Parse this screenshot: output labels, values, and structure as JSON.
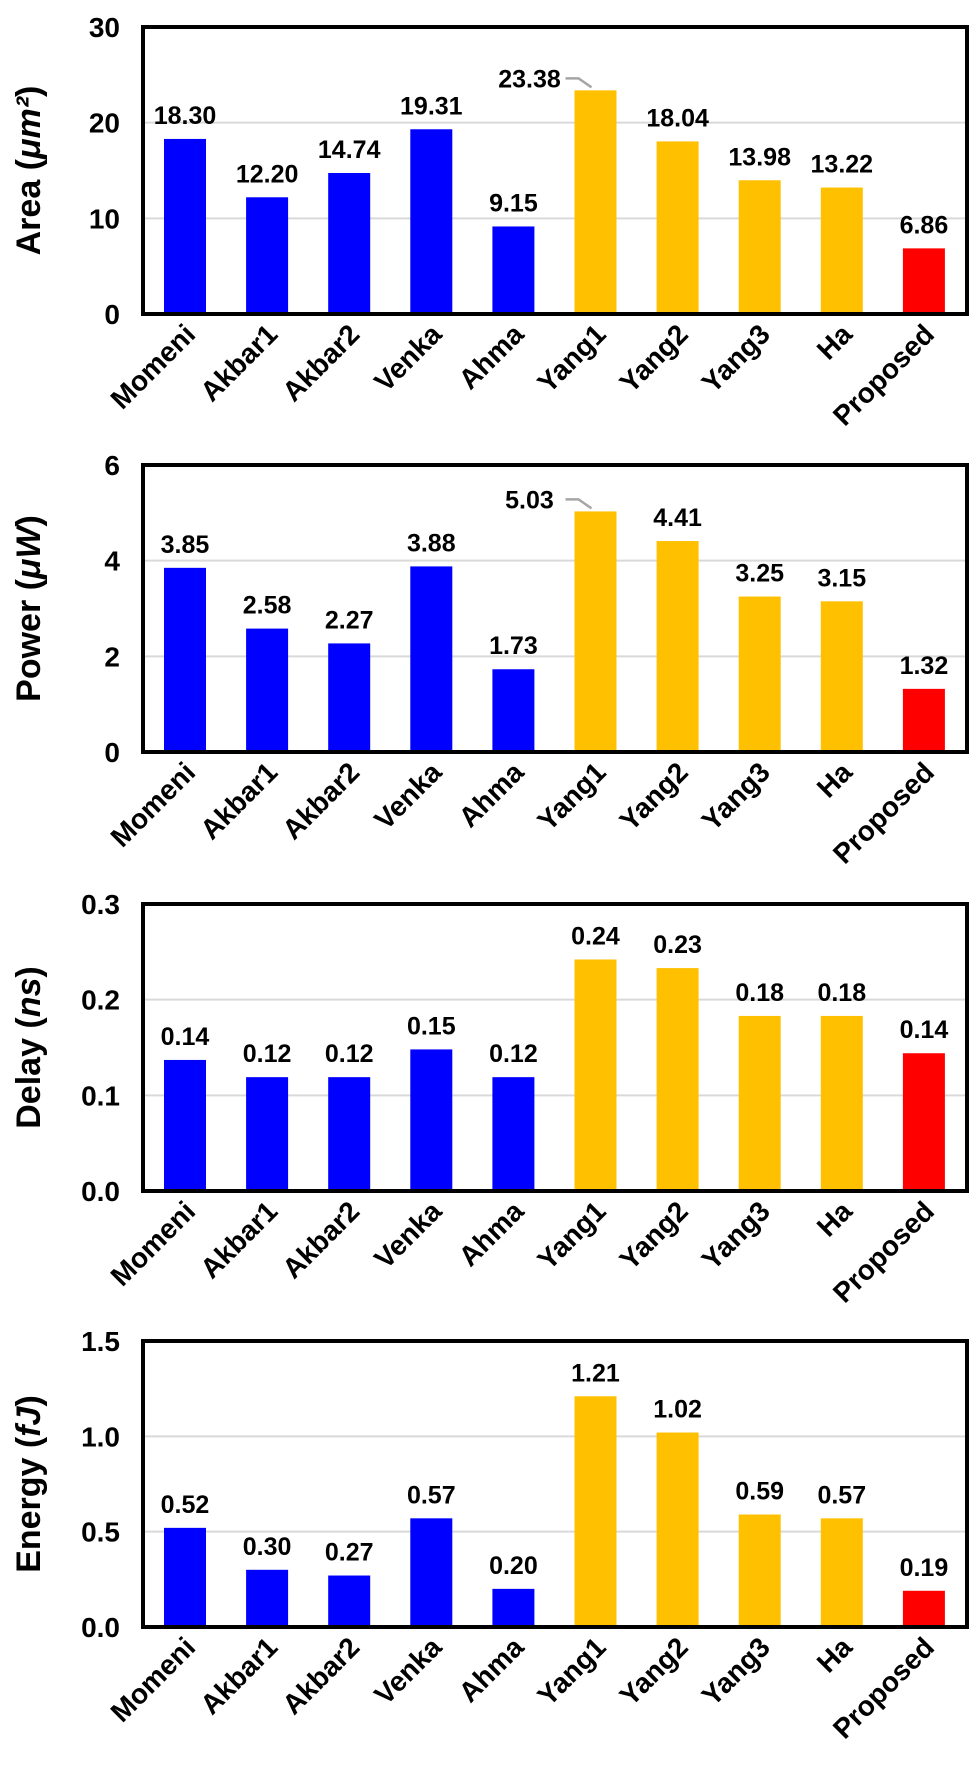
{
  "chart_data": [
    {
      "type": "bar",
      "ylabel": "Area",
      "ylabel_unit": "μm²",
      "ylim": [
        0,
        30
      ],
      "yticks": [
        "0",
        "10",
        "20",
        "30"
      ],
      "grid": true,
      "categories": [
        "Momeni",
        "Akbar1",
        "Akbar2",
        "Venka",
        "Ahma",
        "Yang1",
        "Yang2",
        "Yang3",
        "Ha",
        "Proposed"
      ],
      "values": [
        18.3,
        12.2,
        14.74,
        19.31,
        9.15,
        23.38,
        18.04,
        13.98,
        13.22,
        6.86
      ],
      "value_labels": [
        "18.30",
        "12.20",
        "14.74",
        "19.31",
        "9.15",
        "23.38",
        "18.04",
        "13.98",
        "13.22",
        "6.86"
      ],
      "bar_colors": [
        "#0000ff",
        "#0000ff",
        "#0000ff",
        "#0000ff",
        "#0000ff",
        "#ffc000",
        "#ffc000",
        "#ffc000",
        "#ffc000",
        "#ff0000"
      ],
      "leader_line_on": "Yang1"
    },
    {
      "type": "bar",
      "ylabel": "Power",
      "ylabel_unit": "μW",
      "ylim": [
        0,
        6
      ],
      "yticks": [
        "0",
        "2",
        "4",
        "6"
      ],
      "grid": true,
      "categories": [
        "Momeni",
        "Akbar1",
        "Akbar2",
        "Venka",
        "Ahma",
        "Yang1",
        "Yang2",
        "Yang3",
        "Ha",
        "Proposed"
      ],
      "values": [
        3.85,
        2.58,
        2.27,
        3.88,
        1.73,
        5.03,
        4.41,
        3.25,
        3.15,
        1.32
      ],
      "value_labels": [
        "3.85",
        "2.58",
        "2.27",
        "3.88",
        "1.73",
        "5.03",
        "4.41",
        "3.25",
        "3.15",
        "1.32"
      ],
      "bar_colors": [
        "#0000ff",
        "#0000ff",
        "#0000ff",
        "#0000ff",
        "#0000ff",
        "#ffc000",
        "#ffc000",
        "#ffc000",
        "#ffc000",
        "#ff0000"
      ],
      "leader_line_on": "Yang1"
    },
    {
      "type": "bar",
      "ylabel": "Delay",
      "ylabel_unit": "ns",
      "ylim": [
        0,
        0.3
      ],
      "yticks": [
        "0.0",
        "0.1",
        "0.2",
        "0.3"
      ],
      "grid": true,
      "categories": [
        "Momeni",
        "Akbar1",
        "Akbar2",
        "Venka",
        "Ahma",
        "Yang1",
        "Yang2",
        "Yang3",
        "Ha",
        "Proposed"
      ],
      "values": [
        0.137,
        0.119,
        0.119,
        0.148,
        0.119,
        0.242,
        0.233,
        0.183,
        0.183,
        0.144
      ],
      "value_labels": [
        "0.14",
        "0.12",
        "0.12",
        "0.15",
        "0.12",
        "0.24",
        "0.23",
        "0.18",
        "0.18",
        "0.14"
      ],
      "bar_colors": [
        "#0000ff",
        "#0000ff",
        "#0000ff",
        "#0000ff",
        "#0000ff",
        "#ffc000",
        "#ffc000",
        "#ffc000",
        "#ffc000",
        "#ff0000"
      ],
      "leader_line_on": null
    },
    {
      "type": "bar",
      "ylabel": "Energy",
      "ylabel_unit": "fJ",
      "ylim": [
        0,
        1.5
      ],
      "yticks": [
        "0.0",
        "0.5",
        "1.0",
        "1.5"
      ],
      "grid": true,
      "categories": [
        "Momeni",
        "Akbar1",
        "Akbar2",
        "Venka",
        "Ahma",
        "Yang1",
        "Yang2",
        "Yang3",
        "Ha",
        "Proposed"
      ],
      "values": [
        0.52,
        0.3,
        0.27,
        0.57,
        0.2,
        1.21,
        1.02,
        0.59,
        0.57,
        0.19
      ],
      "value_labels": [
        "0.52",
        "0.30",
        "0.27",
        "0.57",
        "0.20",
        "1.21",
        "1.02",
        "0.59",
        "0.57",
        "0.19"
      ],
      "bar_colors": [
        "#0000ff",
        "#0000ff",
        "#0000ff",
        "#0000ff",
        "#0000ff",
        "#ffc000",
        "#ffc000",
        "#ffc000",
        "#ffc000",
        "#ff0000"
      ],
      "leader_line_on": null
    }
  ]
}
